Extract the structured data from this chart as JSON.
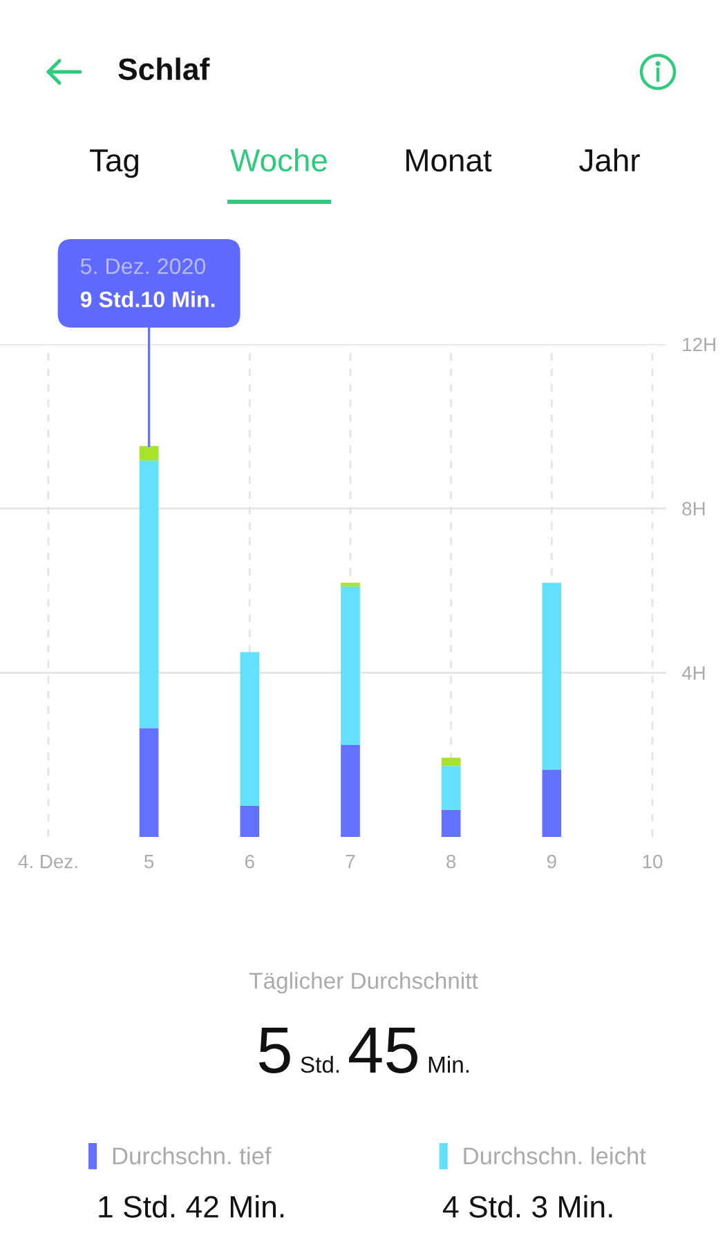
{
  "chart_data": {
    "type": "bar",
    "title": "Schlaf",
    "categories": [
      "4. Dez.",
      "5",
      "6",
      "7",
      "8",
      "9",
      "10"
    ],
    "stacked": true,
    "series": [
      {
        "name": "Durchschn. tief",
        "color": "#6470fe",
        "values": [
          null,
          2.65,
          0.76,
          2.24,
          0.66,
          1.64,
          null
        ]
      },
      {
        "name": "Durchschn. leicht",
        "color": "#62e0fc",
        "values": [
          null,
          6.52,
          3.74,
          3.86,
          1.07,
          4.55,
          null
        ]
      },
      {
        "color": "#a6e22e",
        "values": [
          null,
          0.35,
          null,
          0.09,
          0.2,
          null,
          null
        ]
      }
    ],
    "ylim": [
      0,
      12
    ],
    "yticks": [
      {
        "value": 4,
        "label": "4H"
      },
      {
        "value": 8,
        "label": "8H"
      },
      {
        "value": 12,
        "label": "12H"
      }
    ],
    "grid": true,
    "legend": "bottom",
    "annotations": [
      "Tag",
      "Woche",
      "Monat",
      "Jahr",
      "5. Dez. 2020",
      {
        "text": "9 Std.10 Min.",
        "x": "5",
        "y": 9.52
      },
      "Täglicher Durchschnitt",
      "5",
      "Std.",
      "45",
      "Min.",
      "1 Std. 42 Min.",
      "4 Std. 3 Min."
    ]
  }
}
